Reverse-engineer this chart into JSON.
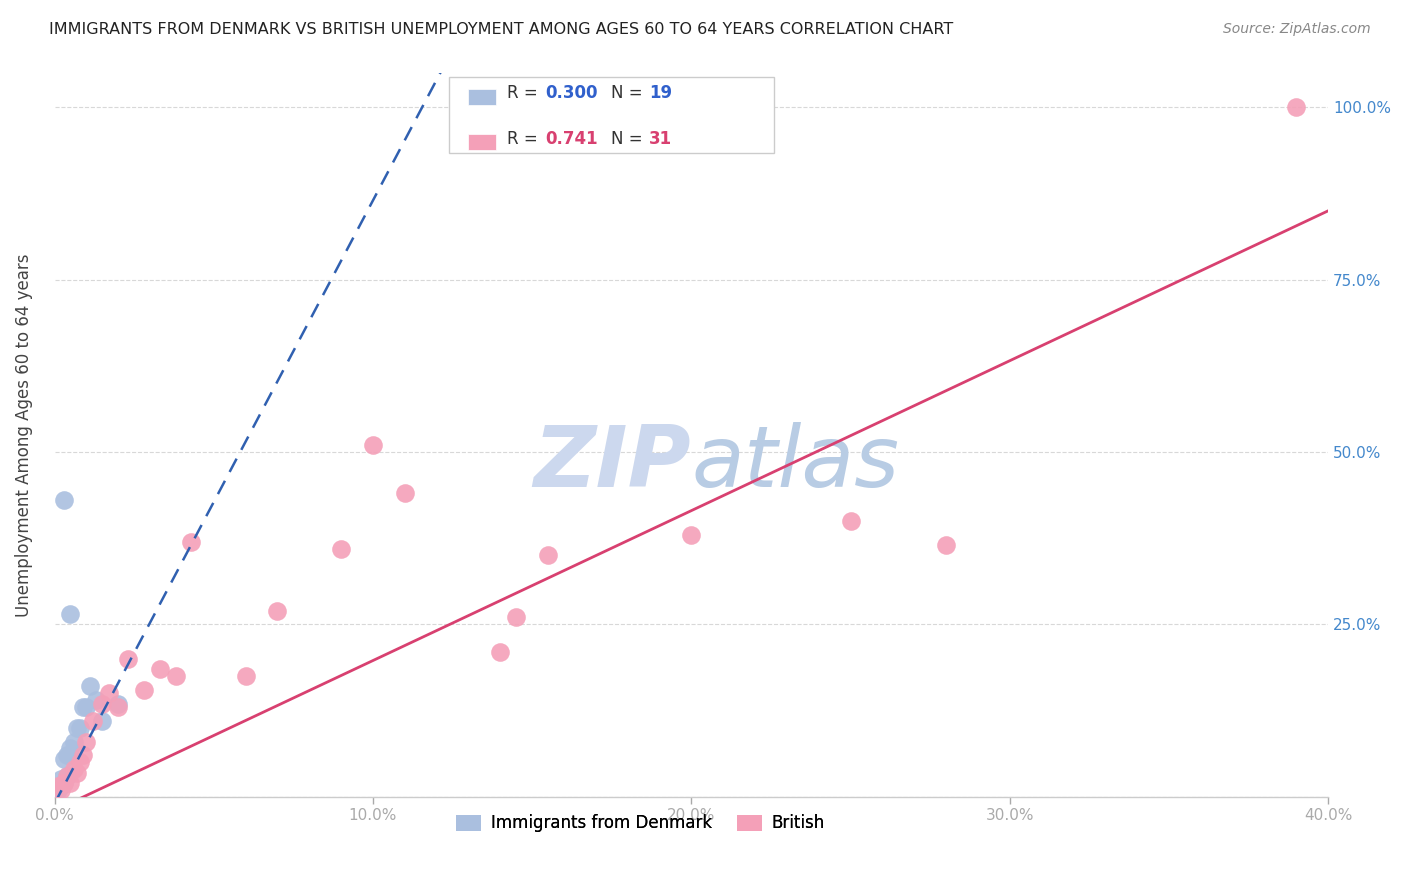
{
  "title": "IMMIGRANTS FROM DENMARK VS BRITISH UNEMPLOYMENT AMONG AGES 60 TO 64 YEARS CORRELATION CHART",
  "source": "Source: ZipAtlas.com",
  "ylabel": "Unemployment Among Ages 60 to 64 years",
  "xlim": [
    0.0,
    0.4
  ],
  "ylim": [
    0.0,
    1.05
  ],
  "xticks": [
    0.0,
    0.1,
    0.2,
    0.3,
    0.4
  ],
  "yticks": [
    0.0,
    0.25,
    0.5,
    0.75,
    1.0
  ],
  "xticklabels": [
    "0.0%",
    "10.0%",
    "20.0%",
    "30.0%",
    "40.0%"
  ],
  "yticklabels_right": [
    "",
    "25.0%",
    "50.0%",
    "75.0%",
    "100.0%"
  ],
  "denmark_R": 0.3,
  "denmark_N": 19,
  "british_R": 0.741,
  "british_N": 31,
  "denmark_color": "#aabfdf",
  "denmark_line_color": "#3060b0",
  "british_color": "#f4a0b8",
  "british_line_color": "#d84070",
  "background_color": "#ffffff",
  "grid_color": "#d8d8d8",
  "watermark_color": "#ccd8ee",
  "denmark_x": [
    0.001,
    0.002,
    0.002,
    0.003,
    0.003,
    0.004,
    0.004,
    0.005,
    0.006,
    0.007,
    0.008,
    0.009,
    0.01,
    0.011,
    0.013,
    0.015,
    0.02,
    0.003,
    0.005
  ],
  "denmark_y": [
    0.01,
    0.015,
    0.025,
    0.02,
    0.055,
    0.03,
    0.06,
    0.07,
    0.08,
    0.1,
    0.1,
    0.13,
    0.13,
    0.16,
    0.14,
    0.11,
    0.135,
    0.43,
    0.265
  ],
  "british_x": [
    0.001,
    0.002,
    0.003,
    0.004,
    0.005,
    0.006,
    0.007,
    0.008,
    0.009,
    0.01,
    0.012,
    0.015,
    0.017,
    0.02,
    0.023,
    0.028,
    0.033,
    0.038,
    0.043,
    0.06,
    0.07,
    0.09,
    0.1,
    0.11,
    0.14,
    0.145,
    0.155,
    0.2,
    0.25,
    0.28,
    0.39
  ],
  "british_y": [
    0.015,
    0.01,
    0.02,
    0.03,
    0.02,
    0.04,
    0.035,
    0.05,
    0.06,
    0.08,
    0.11,
    0.135,
    0.15,
    0.13,
    0.2,
    0.155,
    0.185,
    0.175,
    0.37,
    0.175,
    0.27,
    0.36,
    0.51,
    0.44,
    0.21,
    0.26,
    0.35,
    0.38,
    0.4,
    0.365,
    1.0
  ],
  "dk_line_x0": 0.0,
  "dk_line_y0": -0.01,
  "dk_line_x1": 0.04,
  "dk_line_y1": 0.34,
  "br_line_x0": 0.0,
  "br_line_y0": -0.02,
  "br_line_x1": 0.4,
  "br_line_y1": 0.85,
  "legend_text_color_blue": "#3060cc",
  "legend_text_color_pink": "#d84070",
  "ytick_right_color": "#4488cc"
}
